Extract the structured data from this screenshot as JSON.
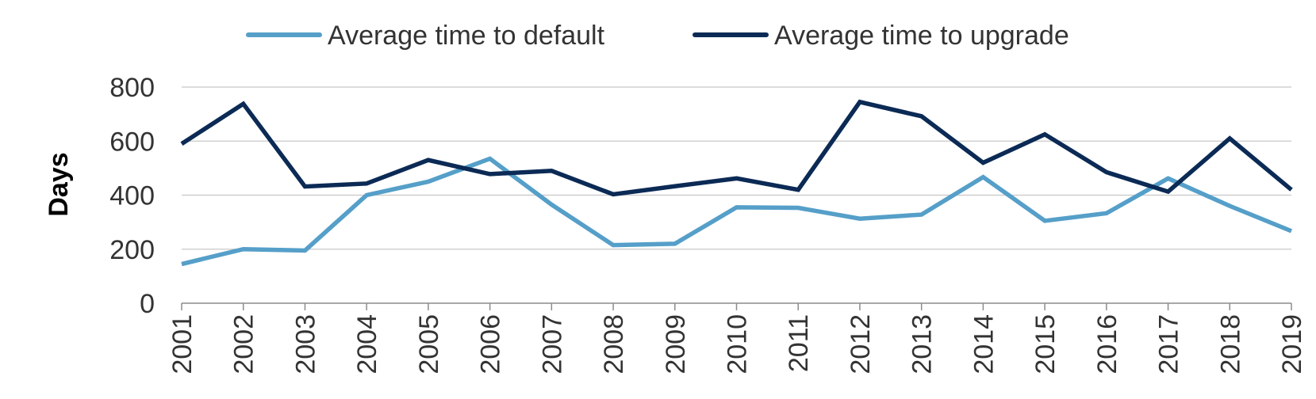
{
  "chart_data": {
    "type": "line",
    "title": "",
    "xlabel": "",
    "ylabel": "Days",
    "ylim": [
      0,
      800
    ],
    "yticks": [
      0,
      200,
      400,
      600,
      800
    ],
    "grid": true,
    "legend_position": "top-center",
    "categories": [
      "2001",
      "2002",
      "2003",
      "2004",
      "2005",
      "2006",
      "2007",
      "2008",
      "2009",
      "2010",
      "2011",
      "2012",
      "2013",
      "2014",
      "2015",
      "2016",
      "2017",
      "2018",
      "2019"
    ],
    "series": [
      {
        "name": "Average time to default",
        "color": "#559fc9",
        "values": [
          145,
          200,
          195,
          400,
          450,
          535,
          365,
          215,
          220,
          355,
          353,
          313,
          328,
          467,
          305,
          333,
          462,
          360,
          267
        ]
      },
      {
        "name": "Average time to upgrade",
        "color": "#0b2a55",
        "values": [
          590,
          738,
          432,
          443,
          530,
          478,
          490,
          403,
          433,
          462,
          420,
          745,
          692,
          520,
          625,
          485,
          413,
          610,
          420
        ]
      }
    ]
  }
}
